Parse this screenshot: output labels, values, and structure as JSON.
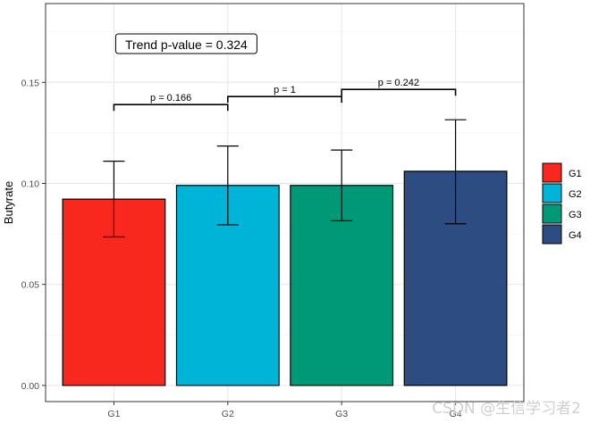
{
  "chart_data": {
    "type": "bar",
    "categories": [
      "G1",
      "G2",
      "G3",
      "G4"
    ],
    "values": [
      0.0922,
      0.099,
      0.099,
      0.106
    ],
    "error_low": [
      0.0735,
      0.0795,
      0.0815,
      0.08
    ],
    "error_high": [
      0.111,
      0.1185,
      0.1165,
      0.1315
    ],
    "bar_colors": [
      "#F8281E",
      "#00B4D8",
      "#009977",
      "#2D4C82"
    ],
    "xlabel": "",
    "ylabel": "Butyrate",
    "ylim": [
      -0.008,
      0.189
    ],
    "yticks": [
      0.0,
      0.05,
      0.1,
      0.15
    ],
    "ytick_labels": [
      "0.00",
      "0.05",
      "0.10",
      "0.15"
    ],
    "grid": true,
    "legend": {
      "placement": "right",
      "entries": [
        {
          "label": "G1",
          "color": "#F8281E"
        },
        {
          "label": "G2",
          "color": "#00B4D8"
        },
        {
          "label": "G3",
          "color": "#009977"
        },
        {
          "label": "G4",
          "color": "#2D4C82"
        }
      ]
    },
    "trend_annotation": "Trend p-value = 0.324",
    "comparisons": [
      {
        "from": "G1",
        "to": "G2",
        "label": "p = 0.166",
        "y": 0.139
      },
      {
        "from": "G2",
        "to": "G3",
        "label": "p = 1",
        "y": 0.143
      },
      {
        "from": "G3",
        "to": "G4",
        "label": "p = 0.242",
        "y": 0.1465
      }
    ]
  },
  "watermark": "CSDN @生信学习者2"
}
